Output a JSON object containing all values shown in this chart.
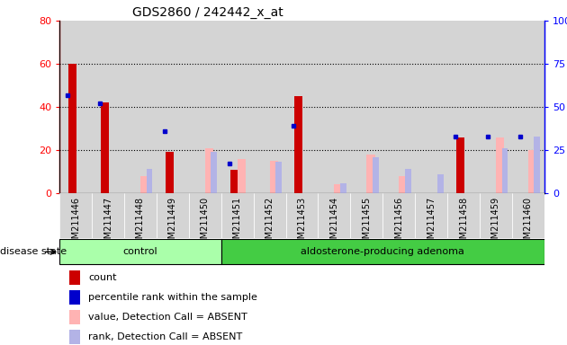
{
  "title": "GDS2860 / 242442_x_at",
  "samples": [
    "GSM211446",
    "GSM211447",
    "GSM211448",
    "GSM211449",
    "GSM211450",
    "GSM211451",
    "GSM211452",
    "GSM211453",
    "GSM211454",
    "GSM211455",
    "GSM211456",
    "GSM211457",
    "GSM211458",
    "GSM211459",
    "GSM211460"
  ],
  "count": [
    60,
    42,
    0,
    19,
    0,
    11,
    0,
    45,
    0,
    0,
    0,
    0,
    26,
    0,
    0
  ],
  "percentile_rank": [
    57,
    52,
    null,
    36,
    null,
    17,
    null,
    39,
    null,
    null,
    null,
    null,
    33,
    33,
    33
  ],
  "value_absent": [
    null,
    null,
    8,
    null,
    21,
    16,
    15,
    null,
    4,
    18,
    8,
    null,
    null,
    26,
    20
  ],
  "rank_absent": [
    null,
    null,
    14,
    null,
    24,
    null,
    18,
    null,
    6,
    21,
    14,
    11,
    null,
    26,
    33
  ],
  "n_control": 5,
  "n_total": 15,
  "ylim_left": [
    0,
    80
  ],
  "ylim_right": [
    0,
    100
  ],
  "yticks_left": [
    0,
    20,
    40,
    60,
    80
  ],
  "yticks_right": [
    0,
    25,
    50,
    75,
    100
  ],
  "ytick_labels_left": [
    "0",
    "20",
    "40",
    "60",
    "80"
  ],
  "ytick_labels_right": [
    "0",
    "25",
    "50",
    "75",
    "100%"
  ],
  "color_count": "#cc0000",
  "color_percentile": "#0000cc",
  "color_value_absent": "#ffb3b3",
  "color_rank_absent": "#b3b3e6",
  "color_control_bg": "#aaffaa",
  "color_adenoma_bg": "#44cc44",
  "color_plot_bg": "#ffffff",
  "color_col_bg": "#d4d4d4",
  "bar_width": 0.35,
  "square_size": 3.5,
  "disease_state_label": "disease state",
  "control_label": "control",
  "adenoma_label": "aldosterone-producing adenoma",
  "legend_items": [
    {
      "label": "count",
      "color": "#cc0000"
    },
    {
      "label": "percentile rank within the sample",
      "color": "#0000cc"
    },
    {
      "label": "value, Detection Call = ABSENT",
      "color": "#ffb3b3"
    },
    {
      "label": "rank, Detection Call = ABSENT",
      "color": "#b3b3e6"
    }
  ]
}
